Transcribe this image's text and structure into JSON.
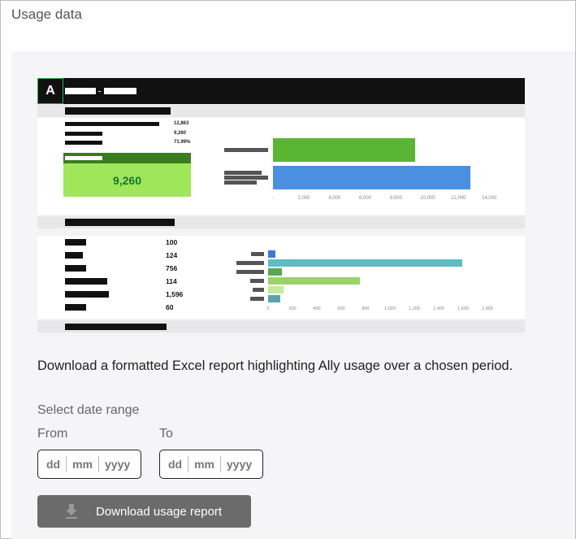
{
  "header": {
    "title": "Usage data"
  },
  "preview": {
    "logo": "A",
    "summary_values": [
      "12,863",
      "9,260",
      "71.99%"
    ],
    "highlight_value": "9,260",
    "chart1": {
      "type": "bar",
      "orientation": "horizontal",
      "values": [
        9260,
        12863
      ],
      "colors": [
        "#5bb535",
        "#4a8fe0"
      ],
      "ticks": [
        "-",
        "2,000",
        "4,000",
        "6,000",
        "8,000",
        "10,000",
        "12,000",
        "14,000"
      ],
      "xlim": [
        0,
        14000
      ]
    },
    "table_values": [
      "100",
      "124",
      "756",
      "114",
      "1,596",
      "60"
    ],
    "chart2": {
      "type": "bar",
      "orientation": "horizontal",
      "values": [
        60,
        1596,
        114,
        756,
        124,
        100
      ],
      "colors": [
        "#3b7bd4",
        "#5fbcc0",
        "#57a857",
        "#9bd36a",
        "#c4eb9a",
        "#5aa3ad"
      ],
      "ticks": [
        "0",
        "200",
        "400",
        "600",
        "800",
        "1,000",
        "1,200",
        "1,400",
        "1,600",
        "1,800"
      ],
      "xlim": [
        0,
        1800
      ]
    }
  },
  "description": "Download a formatted Excel report highlighting Ally usage over a chosen period.",
  "date_range": {
    "label": "Select date range",
    "from_label": "From",
    "to_label": "To",
    "from": {
      "dd": "dd",
      "mm": "mm",
      "yyyy": "yyyy"
    },
    "to": {
      "dd": "dd",
      "mm": "mm",
      "yyyy": "yyyy"
    }
  },
  "download_button": {
    "label": "Download usage report",
    "icon": "download-icon"
  }
}
